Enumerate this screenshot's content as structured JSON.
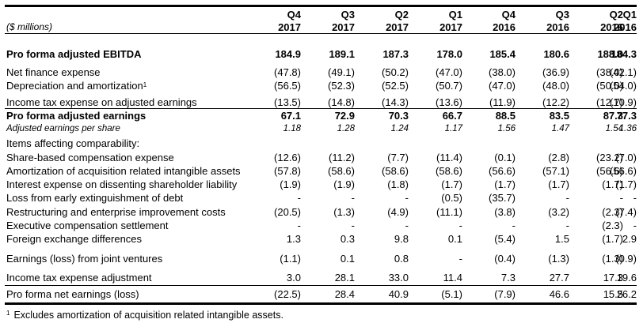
{
  "table": {
    "units_label": "($ millions)",
    "columns": [
      {
        "quarter": "Q4",
        "year": "2017"
      },
      {
        "quarter": "Q3",
        "year": "2017"
      },
      {
        "quarter": "Q2",
        "year": "2017"
      },
      {
        "quarter": "Q1",
        "year": "2017"
      },
      {
        "quarter": "Q4",
        "year": "2016"
      },
      {
        "quarter": "Q3",
        "year": "2016"
      },
      {
        "quarter": "Q2",
        "year": "2016"
      },
      {
        "quarter": "Q1",
        "year": "2016"
      }
    ],
    "rows": [
      {
        "label": "Pro forma adjusted EBITDA",
        "style": "bold",
        "values": [
          "184.9",
          "189.1",
          "187.3",
          "178.0",
          "185.4",
          "180.6",
          "188.0",
          "184.3"
        ]
      },
      {
        "label": "Net finance expense",
        "style": "normal",
        "values": [
          "(47.8)",
          "(49.1)",
          "(50.2)",
          "(47.0)",
          "(38.0)",
          "(36.9)",
          "(38.0)",
          "(42.1)"
        ]
      },
      {
        "label": "Depreciation and amortization",
        "footnote_mark": "1",
        "style": "normal",
        "values": [
          "(56.5)",
          "(52.3)",
          "(52.5)",
          "(50.7)",
          "(47.0)",
          "(48.0)",
          "(50.0)",
          "(54.0)"
        ]
      },
      {
        "label": "Income tax expense on adjusted earnings",
        "style": "normal",
        "values": [
          "(13.5)",
          "(14.8)",
          "(14.3)",
          "(13.6)",
          "(11.9)",
          "(12.2)",
          "(12.7)",
          "(10.9)"
        ]
      },
      {
        "label": "Pro forma adjusted earnings",
        "style": "bold",
        "values": [
          "67.1",
          "72.9",
          "70.3",
          "66.7",
          "88.5",
          "83.5",
          "87.3",
          "77.3"
        ]
      },
      {
        "label": "Adjusted earnings per share",
        "style": "italic",
        "values": [
          "1.18",
          "1.28",
          "1.24",
          "1.17",
          "1.56",
          "1.47",
          "1.54",
          "1.36"
        ]
      },
      {
        "label": "Items affecting comparability:",
        "style": "normal",
        "values": [
          "",
          "",
          "",
          "",
          "",
          "",
          "",
          ""
        ]
      },
      {
        "label": "Share-based compensation expense",
        "style": "normal",
        "values": [
          "(12.6)",
          "(11.2)",
          "(7.7)",
          "(11.4)",
          "(0.1)",
          "(2.8)",
          "(23.2)",
          "(7.0)"
        ]
      },
      {
        "label": "Amortization of acquisition related intangible assets",
        "style": "normal",
        "values": [
          "(57.8)",
          "(58.6)",
          "(58.6)",
          "(58.6)",
          "(56.6)",
          "(57.1)",
          "(56.6)",
          "(56.6)"
        ]
      },
      {
        "label": "Interest expense on dissenting shareholder liability",
        "style": "normal",
        "values": [
          "(1.9)",
          "(1.9)",
          "(1.8)",
          "(1.7)",
          "(1.7)",
          "(1.7)",
          "(1.7)",
          "(1.7)"
        ]
      },
      {
        "label": "Loss from early extinguishment of debt",
        "style": "normal",
        "values": [
          "-",
          "-",
          "-",
          "(0.5)",
          "(35.7)",
          "-",
          "-",
          "-"
        ]
      },
      {
        "label": "Restructuring and enterprise improvement costs",
        "style": "normal",
        "values": [
          "(20.5)",
          "(1.3)",
          "(4.9)",
          "(11.1)",
          "(3.8)",
          "(3.2)",
          "(2.3)",
          "(7.4)"
        ]
      },
      {
        "label": "Executive compensation settlement",
        "style": "normal",
        "values": [
          "-",
          "-",
          "-",
          "-",
          "-",
          "-",
          "(2.3)",
          "-"
        ]
      },
      {
        "label": "Foreign exchange differences",
        "style": "normal",
        "values": [
          "1.3",
          "0.3",
          "9.8",
          "0.1",
          "(5.4)",
          "1.5",
          "(1.7)",
          "2.9"
        ]
      },
      {
        "label": "Earnings (loss) from joint ventures",
        "style": "normal",
        "values": [
          "(1.1)",
          "0.1",
          "0.8",
          "-",
          "(0.4)",
          "(1.3)",
          "(1.3)",
          "(0.9)"
        ]
      },
      {
        "label": "Income tax expense adjustment",
        "style": "normal",
        "values": [
          "3.0",
          "28.1",
          "33.0",
          "11.4",
          "7.3",
          "27.7",
          "17.3",
          "19.6"
        ]
      },
      {
        "label": "Pro forma net earnings (loss)",
        "style": "normal",
        "values": [
          "(22.5)",
          "28.4",
          "40.9",
          "(5.1)",
          "(7.9)",
          "46.6",
          "15.5",
          "26.2"
        ]
      }
    ]
  },
  "footnote": {
    "mark": "1",
    "text": "Excludes amortization of acquisition related intangible assets."
  }
}
